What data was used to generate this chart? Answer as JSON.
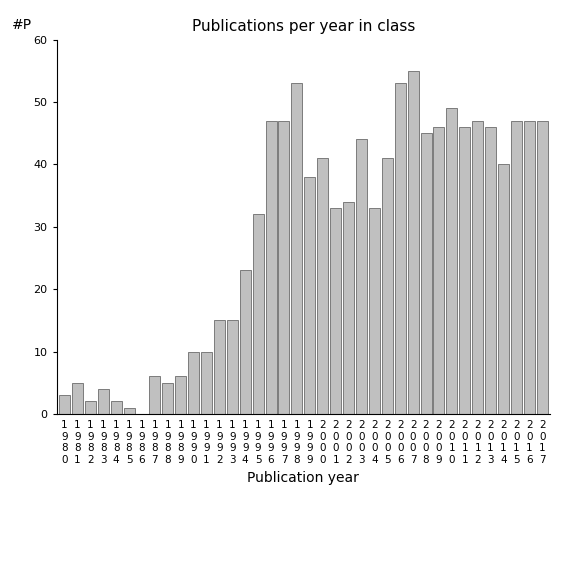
{
  "title": "Publications per year in class",
  "xlabel": "Publication year",
  "ylabel": "#P",
  "years": [
    "1980",
    "1981",
    "1982",
    "1983",
    "1984",
    "1985",
    "1986",
    "1987",
    "1988",
    "1989",
    "1990",
    "1991",
    "1992",
    "1993",
    "1994",
    "1995",
    "1996",
    "1997",
    "1998",
    "1999",
    "2000",
    "2001",
    "2002",
    "2003",
    "2004",
    "2005",
    "2006",
    "2007",
    "2008",
    "2009",
    "2010",
    "2011",
    "2012",
    "2013",
    "2014",
    "2015",
    "2016",
    "2017"
  ],
  "values": [
    3,
    5,
    2,
    4,
    2,
    1,
    0,
    6,
    5,
    6,
    10,
    10,
    15,
    15,
    23,
    32,
    47,
    47,
    53,
    38,
    41,
    33,
    34,
    44,
    33,
    41,
    53,
    55,
    45,
    46,
    49,
    46,
    47,
    46,
    40,
    47,
    47,
    47
  ],
  "bar_color": "#c0c0c0",
  "bar_edgecolor": "#555555",
  "ylim": [
    0,
    60
  ],
  "yticks": [
    0,
    10,
    20,
    30,
    40,
    50,
    60
  ],
  "bg_color": "#ffffff",
  "title_fontsize": 11,
  "label_fontsize": 10,
  "tick_fontsize": 7.5
}
